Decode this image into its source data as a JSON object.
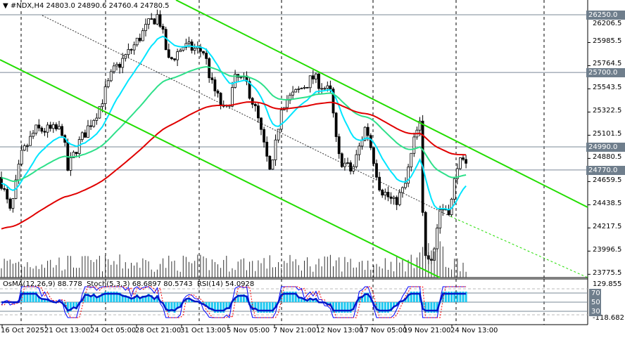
{
  "header": {
    "symbol": "#NDX,H4",
    "ohlc": "24803.0 24890.6 24760.4 24780.5"
  },
  "indicators": {
    "osma": "OsMA(12,26,9) 88.778",
    "stoch": "Stoch(5,3,3) 68.6897 80.5743",
    "rsi": "RSI(14) 54.0928"
  },
  "price_axis": [
    "26206.5",
    "25985.5",
    "25764.5",
    "25543.5",
    "25322.5",
    "25101.5",
    "24880.5",
    "24659.5",
    "24438.5",
    "24217.5",
    "23996.5",
    "23775.5"
  ],
  "price_levels": [
    "26250.0",
    "25700.0",
    "24990.0",
    "24770.0"
  ],
  "indicator_axis": {
    "max": "129.855",
    "min": "-118.682",
    "levels": [
      "70",
      "50",
      "30"
    ]
  },
  "time_axis": [
    "16 Oct 2025",
    "21 Oct 13:00",
    "24 Oct 05:00",
    "28 Oct 21:00",
    "31 Oct 13:00",
    "5 Nov 05:00",
    "7 Nov 21:00",
    "12 Nov 13:00",
    "17 Nov 05:00",
    "19 Nov 21:00",
    "24 Nov 13:00"
  ],
  "colors": {
    "fast_ma": "#00e5ff",
    "mid_ma": "#2ee08a",
    "slow_ma": "#e00000",
    "trendline": "#22dd00",
    "histogram": "#1ec8f0",
    "stoch": "#0000ff",
    "rsi": "#0018c8"
  }
}
